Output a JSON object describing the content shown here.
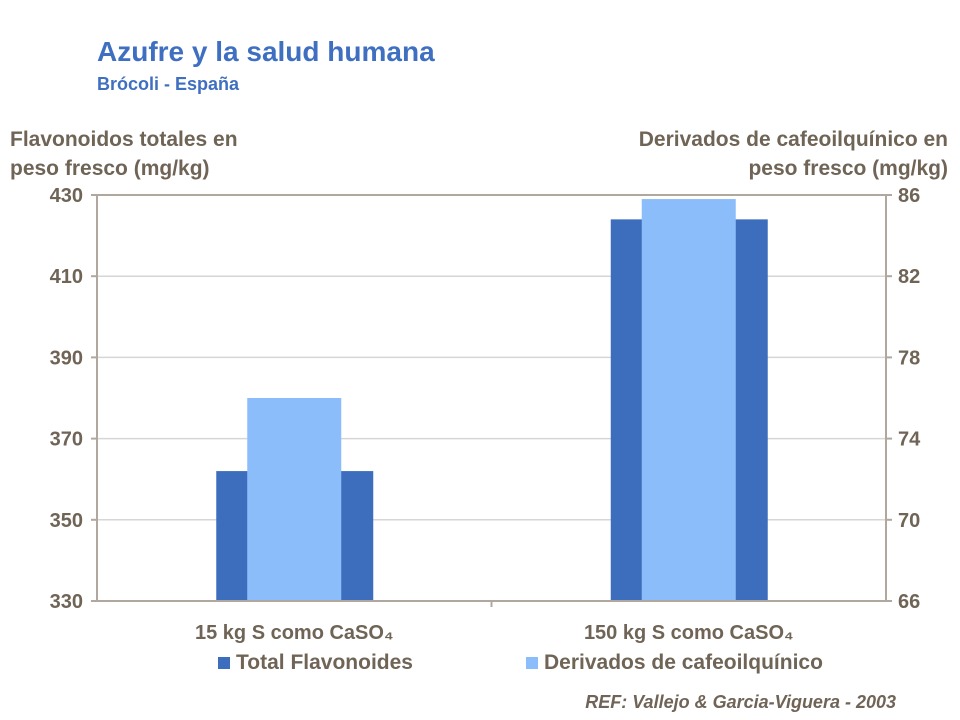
{
  "chart_data": {
    "type": "bar",
    "title": "Azufre y la salud humana",
    "subtitle": "Brócoli - España",
    "ylabel": "Flavonoidos  totales en peso fresco (mg/kg)",
    "ylabel_lines": [
      "Flavonoidos  totales en",
      "peso fresco (mg/kg)"
    ],
    "y2label": "Derivados de cafeoilquínico en peso fresco (mg/kg)",
    "y2label_lines": [
      "Derivados de cafeoilquínico en",
      "peso fresco (mg/kg)"
    ],
    "categories": [
      "15 kg S como CaSO₄",
      "150 kg S como CaSO₄"
    ],
    "ylim": [
      330,
      430
    ],
    "yticks": [
      330,
      350,
      370,
      390,
      410,
      430
    ],
    "y2lim": [
      66,
      86
    ],
    "y2ticks": [
      66,
      70,
      74,
      78,
      82,
      86
    ],
    "grid": true,
    "legend_placement": "bottom",
    "series": [
      {
        "name": "Total Flavonoides",
        "axis": "left",
        "values": [
          362,
          424
        ],
        "color": "#3d6ebd"
      },
      {
        "name": "Derivados de cafeoilquínico",
        "axis": "right",
        "values": [
          76,
          85.8
        ],
        "color": "#8bbdfb"
      }
    ],
    "reference": "REF: Vallejo & Garcia-Viguera - 2003"
  }
}
